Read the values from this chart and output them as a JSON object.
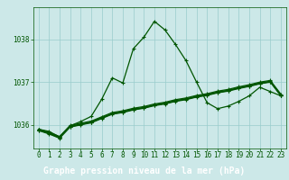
{
  "title": "Graphe pression niveau de la mer (hPa)",
  "bg_color": "#cce8e8",
  "grid_color": "#99cccc",
  "line_color": "#005500",
  "x_ticks": [
    0,
    1,
    2,
    3,
    4,
    5,
    6,
    7,
    8,
    9,
    10,
    11,
    12,
    13,
    14,
    15,
    16,
    17,
    18,
    19,
    20,
    21,
    22,
    23
  ],
  "y_ticks": [
    1036,
    1037,
    1038
  ],
  "ylim": [
    1035.45,
    1038.75
  ],
  "xlim": [
    -0.5,
    23.5
  ],
  "curves": [
    [
      1035.9,
      1035.85,
      1035.72,
      1035.98,
      1036.08,
      1036.2,
      1036.6,
      1037.1,
      1036.98,
      1037.78,
      1038.05,
      1038.42,
      1038.22,
      1037.88,
      1037.5,
      1037.0,
      1036.52,
      1036.38,
      1036.44,
      1036.55,
      1036.68,
      1036.88,
      1036.78,
      1036.68
    ],
    [
      1035.9,
      1035.83,
      1035.73,
      1035.99,
      1036.04,
      1036.09,
      1036.19,
      1036.29,
      1036.33,
      1036.39,
      1036.43,
      1036.49,
      1036.53,
      1036.59,
      1036.63,
      1036.69,
      1036.73,
      1036.79,
      1036.83,
      1036.89,
      1036.94,
      1037.0,
      1037.04,
      1036.72
    ],
    [
      1035.89,
      1035.81,
      1035.71,
      1035.97,
      1036.02,
      1036.07,
      1036.17,
      1036.27,
      1036.31,
      1036.37,
      1036.41,
      1036.47,
      1036.51,
      1036.57,
      1036.61,
      1036.67,
      1036.71,
      1036.77,
      1036.81,
      1036.87,
      1036.92,
      1036.98,
      1037.02,
      1036.7
    ],
    [
      1035.88,
      1035.8,
      1035.7,
      1035.96,
      1036.01,
      1036.06,
      1036.16,
      1036.26,
      1036.3,
      1036.36,
      1036.4,
      1036.46,
      1036.5,
      1036.56,
      1036.6,
      1036.66,
      1036.7,
      1036.76,
      1036.8,
      1036.86,
      1036.91,
      1036.97,
      1037.01,
      1036.69
    ],
    [
      1035.87,
      1035.79,
      1035.69,
      1035.95,
      1036.0,
      1036.05,
      1036.15,
      1036.25,
      1036.29,
      1036.35,
      1036.39,
      1036.45,
      1036.49,
      1036.55,
      1036.59,
      1036.65,
      1036.69,
      1036.75,
      1036.79,
      1036.85,
      1036.9,
      1036.96,
      1037.0,
      1036.68
    ]
  ],
  "marker": "+",
  "marker_size": 3,
  "linewidth": 0.9,
  "tick_fontsize": 5.5,
  "tick_color": "#005500",
  "title_fontsize": 7.0,
  "title_color": "white",
  "title_bg_color": "#336633"
}
